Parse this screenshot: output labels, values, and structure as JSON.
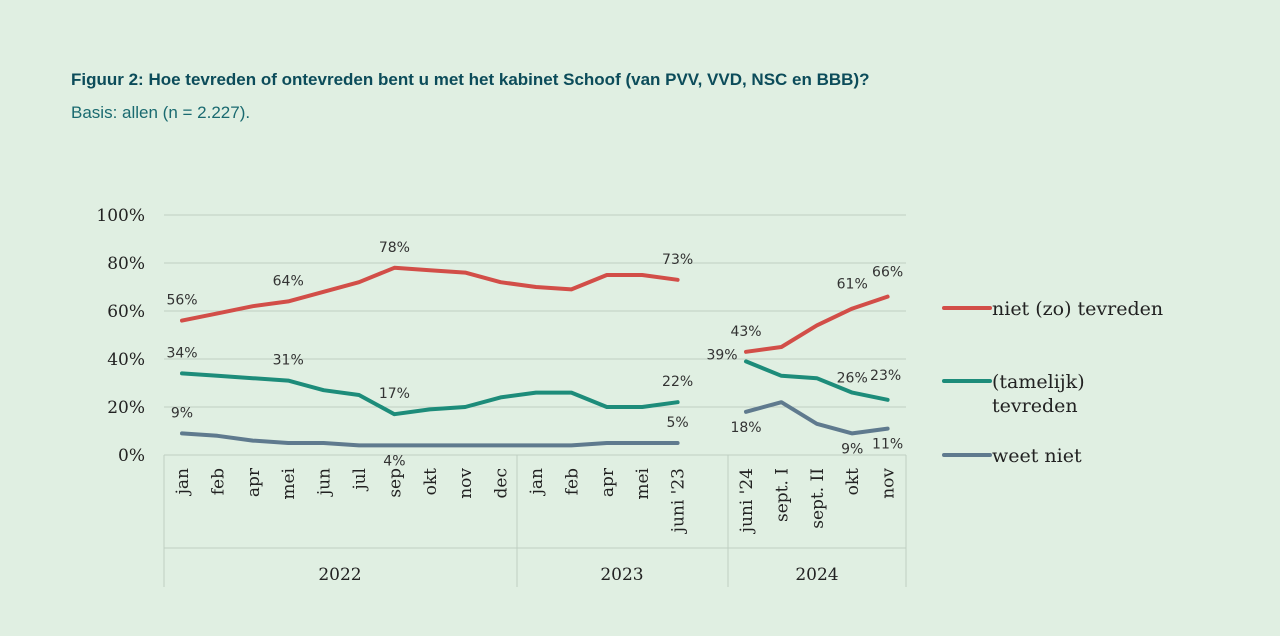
{
  "figure": {
    "title": "Figuur 2: Hoe tevreden of ontevreden bent u met het kabinet Schoof (van PVV, VVD, NSC en BBB)?",
    "subtitle": "Basis: allen (n = 2.227)."
  },
  "chart_data": {
    "type": "line",
    "title": "Figuur 2: Hoe tevreden of ontevreden bent u met het kabinet Schoof (van PVV, VVD, NSC en BBB)?",
    "ylim": [
      0,
      100
    ],
    "yticks": [
      "0%",
      "20%",
      "40%",
      "60%",
      "80%",
      "100%"
    ],
    "grid": true,
    "legend_position": "right",
    "segments": [
      {
        "year": "2022",
        "categories": [
          "jan",
          "feb",
          "apr",
          "mei",
          "jun",
          "jul",
          "sep",
          "okt",
          "nov",
          "dec"
        ]
      },
      {
        "year": "2023",
        "categories": [
          "jan",
          "feb",
          "apr",
          "mei",
          "juni '23"
        ]
      },
      {
        "year": "2024",
        "categories": [
          "juni '24",
          "sept. I",
          "sept. II",
          "okt",
          "nov"
        ]
      }
    ],
    "series": [
      {
        "name": "niet (zo) tevreden",
        "color": "#d24e48",
        "values": [
          [
            56,
            59,
            62,
            64,
            68,
            72,
            78,
            77,
            76,
            72,
            70,
            69,
            75,
            75,
            73
          ],
          [
            43,
            45,
            54,
            61,
            66
          ]
        ],
        "labels": [
          {
            "seg": 0,
            "idx": 0,
            "text": "56%"
          },
          {
            "seg": 0,
            "idx": 3,
            "text": "64%"
          },
          {
            "seg": 0,
            "idx": 6,
            "text": "78%"
          },
          {
            "seg": 1,
            "idx": 4,
            "text": "73%"
          },
          {
            "seg": 2,
            "idx": 0,
            "text": "43%"
          },
          {
            "seg": 2,
            "idx": 3,
            "text": "61%"
          },
          {
            "seg": 2,
            "idx": 4,
            "text": "66%"
          }
        ]
      },
      {
        "name": "(tamelijk) tevreden",
        "color": "#1d8c7a",
        "values": [
          [
            34,
            33,
            32,
            31,
            27,
            25,
            17,
            19,
            20,
            24,
            26,
            26,
            20,
            20,
            22
          ],
          [
            39,
            33,
            32,
            26,
            23
          ]
        ],
        "labels": [
          {
            "seg": 0,
            "idx": 0,
            "text": "34%"
          },
          {
            "seg": 0,
            "idx": 3,
            "text": "31%"
          },
          {
            "seg": 0,
            "idx": 6,
            "text": "17%"
          },
          {
            "seg": 1,
            "idx": 4,
            "text": "22%"
          },
          {
            "seg": 2,
            "idx": 0,
            "text": "39%"
          },
          {
            "seg": 2,
            "idx": 3,
            "text": "26%"
          },
          {
            "seg": 2,
            "idx": 4,
            "text": "23%"
          }
        ]
      },
      {
        "name": "weet niet",
        "color": "#5f7a8e",
        "values": [
          [
            9,
            8,
            6,
            5,
            5,
            4,
            4,
            4,
            4,
            4,
            4,
            4,
            5,
            5,
            5
          ],
          [
            18,
            22,
            13,
            9,
            11
          ]
        ],
        "labels": [
          {
            "seg": 0,
            "idx": 0,
            "text": "9%"
          },
          {
            "seg": 0,
            "idx": 6,
            "text": "4%"
          },
          {
            "seg": 1,
            "idx": 4,
            "text": "5%"
          },
          {
            "seg": 2,
            "idx": 0,
            "text": "18%"
          },
          {
            "seg": 2,
            "idx": 3,
            "text": "9%"
          },
          {
            "seg": 2,
            "idx": 4,
            "text": "11%"
          }
        ]
      }
    ]
  }
}
